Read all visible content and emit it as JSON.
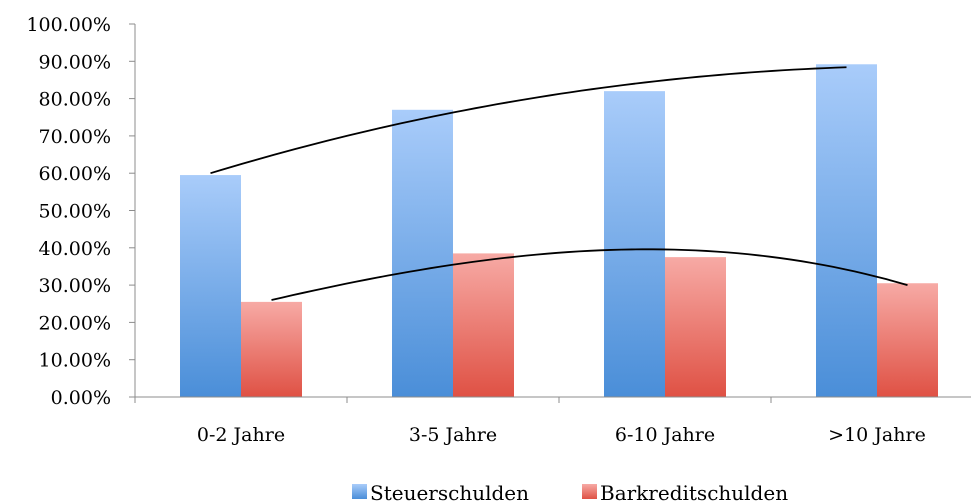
{
  "chart_data": {
    "type": "bar",
    "categories": [
      "0-2 Jahre",
      "3-5 Jahre",
      "6-10 Jahre",
      ">10 Jahre"
    ],
    "series": [
      {
        "name": "Steuerschulden",
        "values": [
          59.5,
          77.0,
          82.0,
          89.2
        ],
        "color": "#7fb0ec"
      },
      {
        "name": "Barkreditschulden",
        "values": [
          25.5,
          38.5,
          37.5,
          30.5
        ],
        "color": "#ef8f8a"
      }
    ],
    "trendlines": [
      {
        "series": "Steuerschulden",
        "type": "polynomial",
        "order": 2,
        "values": [
          60.0,
          74.6,
          84.0,
          88.4
        ]
      },
      {
        "series": "Barkreditschulden",
        "type": "polynomial",
        "order": 2,
        "values": [
          26.0,
          36.6,
          39.3,
          30.0
        ]
      }
    ],
    "yticks": [
      "0.00%",
      "10.00%",
      "20.00%",
      "30.00%",
      "40.00%",
      "50.00%",
      "60.00%",
      "70.00%",
      "80.00%",
      "90.00%",
      "100.00%"
    ],
    "ylim": [
      0,
      100
    ],
    "grid": false,
    "legend": "bottom",
    "title": "",
    "xlabel": "",
    "ylabel": ""
  }
}
